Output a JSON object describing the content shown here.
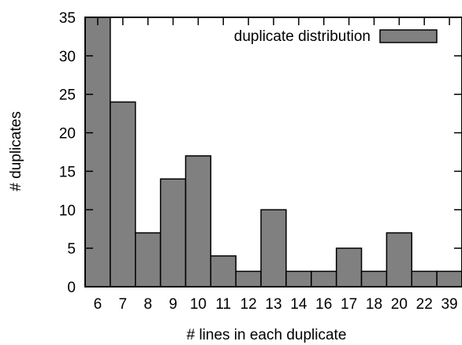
{
  "chart_data": {
    "type": "bar",
    "categories": [
      "6",
      "7",
      "8",
      "9",
      "10",
      "11",
      "12",
      "13",
      "14",
      "16",
      "17",
      "18",
      "20",
      "22",
      "39"
    ],
    "series": [
      {
        "name": "duplicate distribution",
        "values": [
          35,
          24,
          7,
          14,
          17,
          4,
          2,
          10,
          2,
          2,
          5,
          2,
          7,
          2,
          2
        ],
        "color": "#808080"
      }
    ],
    "xlabel": "# lines in each duplicate",
    "ylabel": "# duplicates",
    "ylim": [
      0,
      35
    ],
    "yticks": [
      0,
      5,
      10,
      15,
      20,
      25,
      30,
      35
    ],
    "grid": false,
    "legend_position": "top-right"
  }
}
